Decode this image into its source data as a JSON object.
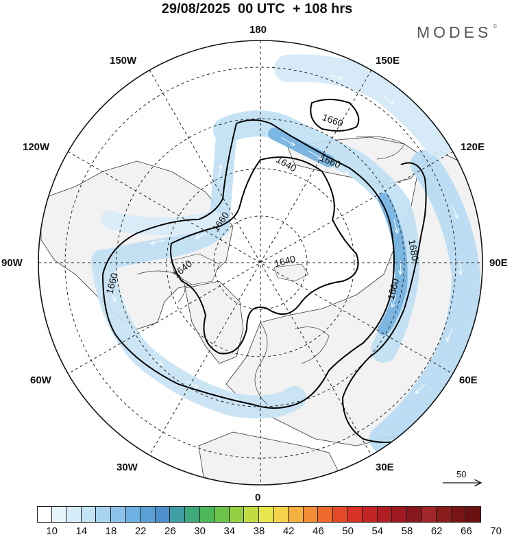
{
  "header": {
    "title": "29/08/2025  00 UTC  + 108 hrs",
    "brand": "MODES",
    "brand_mark": "©"
  },
  "map": {
    "longitude_labels": {
      "lon_180": "180",
      "lon_150w": "150W",
      "lon_150e": "150E",
      "lon_120w": "120W",
      "lon_120e": "120E",
      "lon_90w": "90W",
      "lon_90e": "90E",
      "lon_60w": "60W",
      "lon_60e": "60E",
      "lon_30w": "30W",
      "lon_30e": "30E",
      "lon_0": "0"
    },
    "contour_labels": [
      "1640",
      "1640",
      "1640",
      "1660",
      "1660",
      "1660",
      "1660",
      "1680",
      "1660"
    ],
    "colors": {
      "land_fill": "#f2f2f2",
      "coastline": "#333333",
      "graticule": "#222222",
      "contour": "#000000"
    }
  },
  "vector_reference": {
    "value": "50"
  },
  "legend": {
    "colors": [
      "#ffffff",
      "#e8f4fb",
      "#d6ecf8",
      "#c4e3f5",
      "#a8d4f0",
      "#8cc3ea",
      "#6db0e2",
      "#5a9fd6",
      "#4c8fcc",
      "#3f9ea6",
      "#3fa97a",
      "#4cb85a",
      "#6cc54a",
      "#95d043",
      "#c0dc42",
      "#e8e64a",
      "#f6d24a",
      "#f5b13f",
      "#f28d35",
      "#ee692c",
      "#e44a27",
      "#d63226",
      "#c42424",
      "#b01e22",
      "#9c1a20",
      "#88161c",
      "#a0262a",
      "#8a1c1c",
      "#7a1414",
      "#6b1010"
    ],
    "tick_labels": [
      "10",
      "14",
      "18",
      "22",
      "26",
      "30",
      "34",
      "38",
      "42",
      "46",
      "50",
      "54",
      "58",
      "62",
      "66",
      "70"
    ]
  }
}
